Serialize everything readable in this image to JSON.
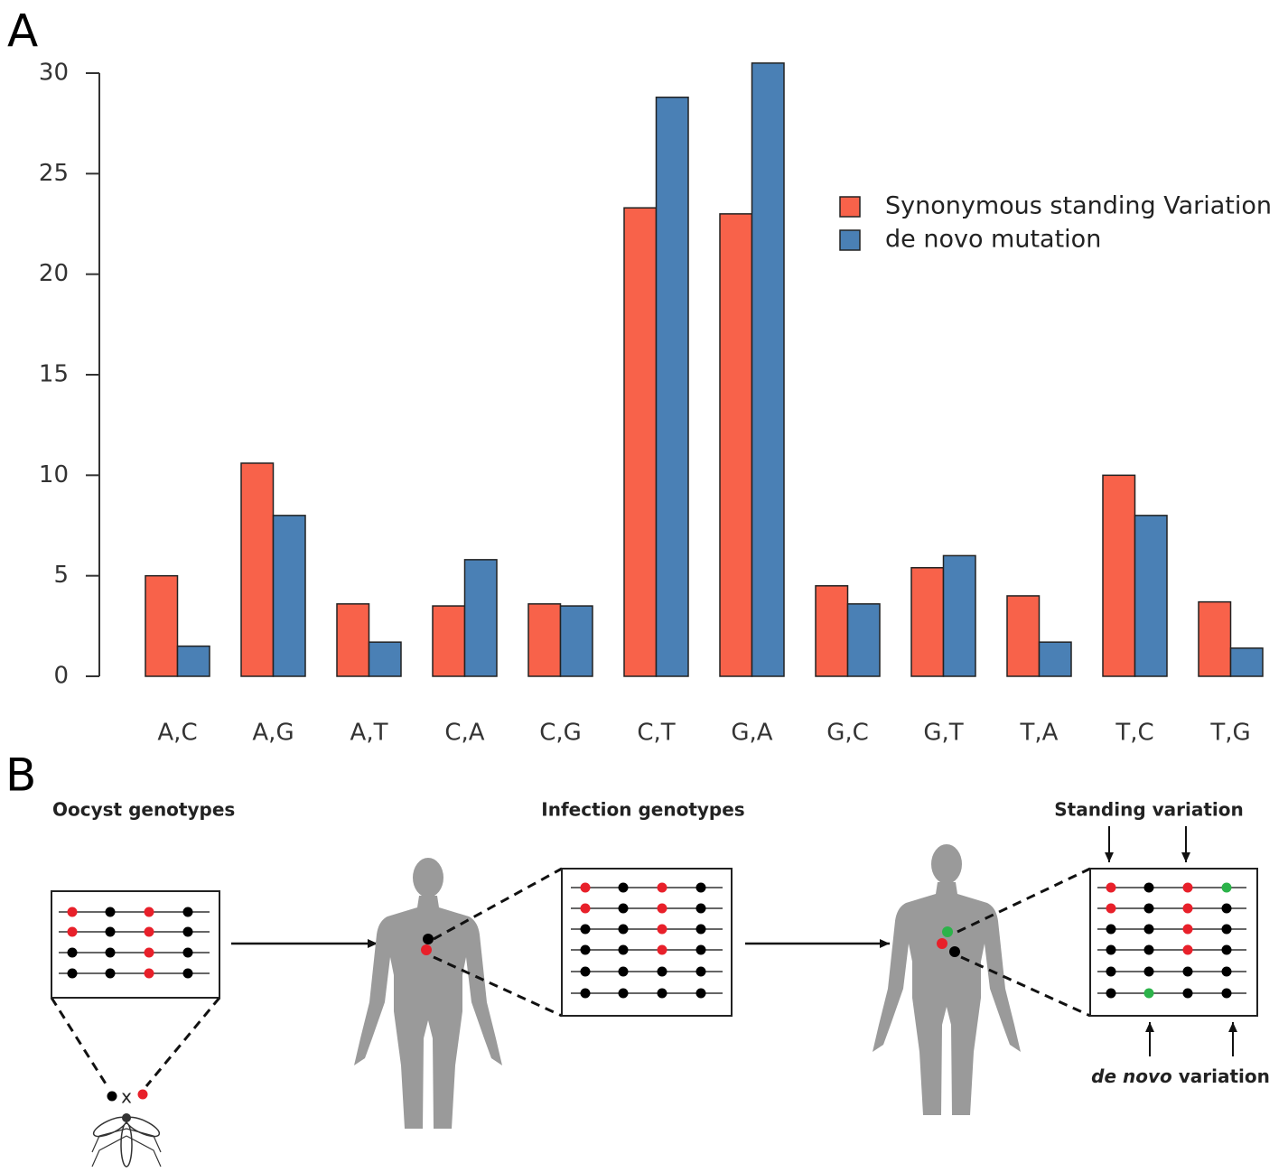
{
  "panel_labels": [
    "A",
    "B"
  ],
  "chart_data": {
    "type": "bar",
    "categories": [
      "A,C",
      "A,G",
      "A,T",
      "C,A",
      "C,G",
      "C,T",
      "G,A",
      "G,C",
      "G,T",
      "T,A",
      "T,C",
      "T,G"
    ],
    "series": [
      {
        "name": "Synonymous standing Variation",
        "color": "#f8624a",
        "values": [
          5.0,
          10.6,
          3.6,
          3.5,
          3.6,
          23.3,
          23.0,
          4.5,
          5.4,
          4.0,
          10.0,
          3.7
        ]
      },
      {
        "name": "de novo mutation",
        "color": "#4a80b5",
        "values": [
          1.5,
          8.0,
          1.7,
          5.8,
          3.5,
          28.8,
          30.5,
          3.6,
          6.0,
          1.7,
          8.0,
          1.4
        ]
      }
    ],
    "ylim": [
      0,
      30
    ],
    "yticks": [
      0,
      5,
      10,
      15,
      20,
      25,
      30
    ],
    "grid": false,
    "legend": "upper right"
  },
  "diagram": {
    "oocyst_label": "Oocyst genotypes",
    "infection_label": "Infection genotypes",
    "standing_label": "Standing variation",
    "denovo_label": [
      "de novo",
      "variation"
    ],
    "cross_label": "x"
  }
}
